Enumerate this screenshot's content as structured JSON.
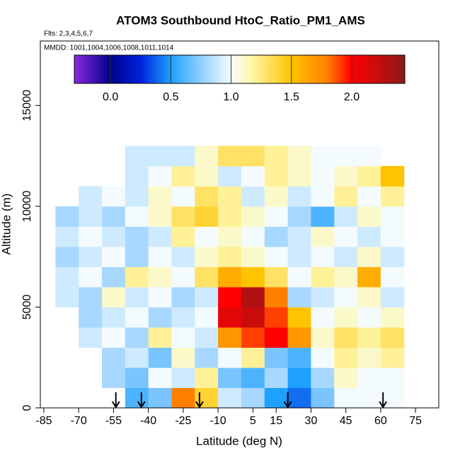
{
  "chart_data": {
    "type": "heatmap",
    "title": "ATOM3 Southbound HtoC_Ratio_PM1_AMS",
    "annotations": [
      "Flts: 2,3,4,5,6,7",
      "MMDD: 1001,1004,1006,1008,1011,1014"
    ],
    "xlabel": "Latitude (deg N)",
    "ylabel": "Altitude (m)",
    "xlim": [
      -86.5,
      85
    ],
    "ylim": [
      0,
      18200
    ],
    "xticks": [
      -85,
      -70,
      -55,
      -40,
      -25,
      -10,
      5,
      15,
      30,
      45,
      60,
      75
    ],
    "yticks": [
      0,
      5000,
      10000,
      15000
    ],
    "x_edges": [
      -80,
      -70,
      -60,
      -50,
      -40,
      -30,
      -20,
      -10,
      0,
      10,
      20,
      30,
      40,
      50,
      60,
      70
    ],
    "y_edges": [
      0,
      1000,
      2000,
      3000,
      4000,
      5000,
      6000,
      7000,
      8000,
      9000,
      10000,
      11000,
      12000,
      13000
    ],
    "z": [
      [
        null,
        null,
        null,
        0.6,
        0.7,
        1.8,
        1.4,
        0.9,
        0.8,
        0.5,
        0.4,
        0.7,
        1.0,
        1.0,
        1.0
      ],
      [
        null,
        null,
        0.8,
        0.7,
        1.0,
        0.9,
        1.2,
        0.7,
        0.6,
        0.8,
        0.5,
        0.8,
        1.1,
        1.0,
        1.0
      ],
      [
        null,
        null,
        0.8,
        0.9,
        0.7,
        1.1,
        0.8,
        1.0,
        1.2,
        0.7,
        0.6,
        1.0,
        1.2,
        1.1,
        1.2
      ],
      [
        null,
        0.9,
        1.0,
        0.8,
        1.2,
        1.0,
        0.9,
        1.7,
        1.9,
        2.0,
        1.7,
        1.1,
        1.3,
        1.2,
        1.3
      ],
      [
        null,
        0.8,
        0.9,
        1.0,
        0.8,
        0.9,
        1.0,
        2.1,
        2.2,
        1.9,
        1.5,
        1.0,
        1.1,
        1.0,
        1.1
      ],
      [
        0.9,
        0.8,
        1.1,
        0.9,
        1.0,
        0.8,
        0.9,
        2.0,
        2.3,
        1.8,
        0.8,
        0.9,
        1.0,
        1.1,
        0.9
      ],
      [
        0.9,
        1.0,
        0.8,
        1.2,
        1.1,
        1.0,
        1.3,
        1.6,
        1.5,
        1.3,
        1.0,
        1.2,
        1.1,
        1.6,
        1.0
      ],
      [
        0.8,
        0.9,
        1.0,
        0.8,
        1.0,
        0.9,
        1.1,
        1.2,
        1.1,
        1.0,
        0.9,
        1.0,
        0.9,
        1.1,
        0.9
      ],
      [
        0.9,
        1.0,
        0.9,
        0.8,
        0.9,
        1.2,
        1.0,
        1.1,
        1.0,
        0.8,
        0.9,
        1.1,
        1.0,
        0.9,
        1.0
      ],
      [
        0.8,
        0.9,
        0.8,
        1.0,
        1.1,
        1.3,
        1.4,
        1.2,
        1.1,
        1.0,
        0.8,
        0.6,
        0.9,
        1.1,
        1.0
      ],
      [
        null,
        0.9,
        1.0,
        0.9,
        1.1,
        1.0,
        1.3,
        1.2,
        0.9,
        1.1,
        0.9,
        1.0,
        1.2,
        1.0,
        1.2
      ],
      [
        null,
        null,
        null,
        0.9,
        1.0,
        1.2,
        1.1,
        0.9,
        1.0,
        1.2,
        1.1,
        1.0,
        1.1,
        1.2,
        1.5
      ],
      [
        null,
        null,
        null,
        0.9,
        0.9,
        0.9,
        1.1,
        1.3,
        1.3,
        1.2,
        1.1,
        1.0,
        1.0,
        1.0,
        null
      ]
    ],
    "clim": [
      -0.3,
      2.44
    ],
    "cticks": [
      {
        "value": 0,
        "label": "0.0"
      },
      0.5,
      {
        "value": 1,
        "label": "1.0"
      },
      1.5,
      {
        "value": 2,
        "label": "2.0"
      }
    ],
    "colorscale": [
      [
        -0.3,
        "#8a2be2"
      ],
      [
        0,
        "#00008b"
      ],
      [
        0.25,
        "#0022dd"
      ],
      [
        0.5,
        "#1ea0ff"
      ],
      [
        0.8,
        "#a8d8ff"
      ],
      [
        1.0,
        "#f4fbff"
      ],
      [
        1.15,
        "#fff8b0"
      ],
      [
        1.5,
        "#ffc400"
      ],
      [
        1.8,
        "#ff8000"
      ],
      [
        2.0,
        "#ff0000"
      ],
      [
        2.44,
        "#8b1a1a"
      ]
    ],
    "arrows": [
      -54,
      -43,
      -18,
      20,
      61
    ]
  }
}
